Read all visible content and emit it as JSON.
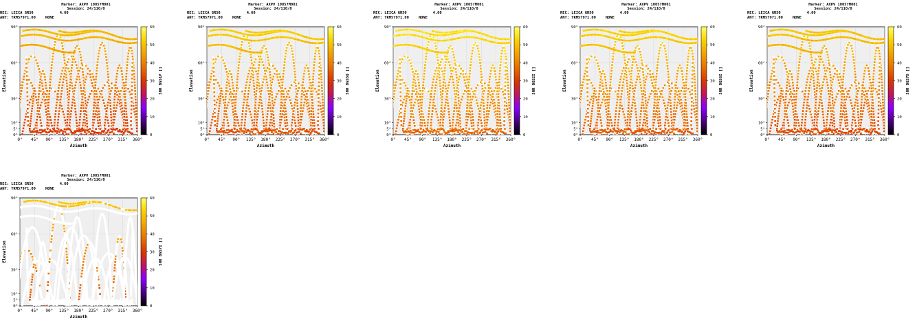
{
  "figure": {
    "colors": {
      "background": "#efefef",
      "sky_gap": "#ffffff",
      "grid": "#d0d0d0",
      "colormap": [
        "#000000",
        "#4b0082",
        "#8b00ff",
        "#c0155c",
        "#d83800",
        "#e87000",
        "#f2a100",
        "#f8d200",
        "#ffff66"
      ]
    },
    "panels": [
      {
        "header": {
          "marker": "Marker: AXPV 10057M001",
          "session": "Session: 24/110/0",
          "rec_label": "REC: LEICA GR50",
          "rec_version": "4.60",
          "ant_label": "ANT: TRM57971.00",
          "ant_radome": "NONE"
        },
        "chart_data": {
          "type": "scatter",
          "xlabel": "Azimuth",
          "ylabel": "Elevation",
          "x_ticks": [
            "0°",
            "45°",
            "90°",
            "135°",
            "180°",
            "225°",
            "270°",
            "315°",
            "360°"
          ],
          "y_ticks": [
            "0°",
            "5°",
            "10°",
            "30°",
            "60°",
            "90°"
          ],
          "xlim": [
            0,
            360
          ],
          "ylim": [
            0,
            90
          ],
          "elevation_cutoff": 0,
          "colorbar": {
            "label": "SNR BGS1P []",
            "ticks": [
              "0",
              "10",
              "20",
              "30",
              "40",
              "50",
              "60"
            ],
            "range": [
              0,
              60
            ]
          },
          "typical_snr": 44
        }
      },
      {
        "header": {
          "marker": "Marker: AXPV 10057M001",
          "session": "Session: 24/110/0",
          "rec_label": "REC: LEICA GR50",
          "rec_version": "4.60",
          "ant_label": "ANT: TRM57971.00",
          "ant_radome": "NONE"
        },
        "chart_data": {
          "type": "scatter",
          "xlabel": "Azimuth",
          "ylabel": "Elevation",
          "x_ticks": [
            "0°",
            "45°",
            "90°",
            "135°",
            "180°",
            "225°",
            "270°",
            "315°",
            "360°"
          ],
          "y_ticks": [
            "0°",
            "5°",
            "10°",
            "30°",
            "60°",
            "90°"
          ],
          "xlim": [
            0,
            360
          ],
          "ylim": [
            0,
            90
          ],
          "elevation_cutoff": 0,
          "colorbar": {
            "label": "SNR BGS5Q []",
            "ticks": [
              "0",
              "10",
              "20",
              "30",
              "40",
              "50",
              "60"
            ],
            "range": [
              0,
              60
            ]
          },
          "typical_snr": 47
        }
      },
      {
        "header": {
          "marker": "Marker: AXPV 10057M001",
          "session": "Session: 24/110/0",
          "rec_label": "REC: LEICA GR50",
          "rec_version": "4.60",
          "ant_label": "ANT: TRM57971.00",
          "ant_radome": "NONE"
        },
        "chart_data": {
          "type": "scatter",
          "xlabel": "Azimuth",
          "ylabel": "Elevation",
          "x_ticks": [
            "0°",
            "45°",
            "90°",
            "135°",
            "180°",
            "225°",
            "270°",
            "315°",
            "360°"
          ],
          "y_ticks": [
            "0°",
            "5°",
            "10°",
            "30°",
            "60°",
            "90°"
          ],
          "xlim": [
            0,
            360
          ],
          "ylim": [
            0,
            90
          ],
          "elevation_cutoff": 0,
          "colorbar": {
            "label": "SNR BGS2I []",
            "ticks": [
              "0",
              "10",
              "20",
              "30",
              "40",
              "50",
              "60"
            ],
            "range": [
              0,
              60
            ]
          },
          "typical_snr": 50
        }
      },
      {
        "header": {
          "marker": "Marker: AXPV 10057M001",
          "session": "Session: 24/110/0",
          "rec_label": "REC: LEICA GR50",
          "rec_version": "4.60",
          "ant_label": "ANT: TRM57971.00",
          "ant_radome": "NONE"
        },
        "chart_data": {
          "type": "scatter",
          "xlabel": "Azimuth",
          "ylabel": "Elevation",
          "x_ticks": [
            "0°",
            "45°",
            "90°",
            "135°",
            "180°",
            "225°",
            "270°",
            "315°",
            "360°"
          ],
          "y_ticks": [
            "0°",
            "5°",
            "10°",
            "30°",
            "60°",
            "90°"
          ],
          "xlim": [
            0,
            360
          ],
          "ylim": [
            0,
            90
          ],
          "elevation_cutoff": 0,
          "colorbar": {
            "label": "SNR BGS6I []",
            "ticks": [
              "0",
              "10",
              "20",
              "30",
              "40",
              "50",
              "60"
            ],
            "range": [
              0,
              60
            ]
          },
          "typical_snr": 48
        }
      },
      {
        "header": {
          "marker": "Marker: AXPV 10057M001",
          "session": "Session: 24/110/0",
          "rec_label": "REC: LEICA GR50",
          "rec_version": "4.60",
          "ant_label": "ANT: TRM57971.00",
          "ant_radome": "NONE"
        },
        "chart_data": {
          "type": "scatter",
          "xlabel": "Azimuth",
          "ylabel": "Elevation",
          "x_ticks": [
            "0°",
            "45°",
            "90°",
            "135°",
            "180°",
            "225°",
            "270°",
            "315°",
            "360°"
          ],
          "y_ticks": [
            "0°",
            "5°",
            "10°",
            "30°",
            "60°",
            "90°"
          ],
          "xlim": [
            0,
            360
          ],
          "ylim": [
            0,
            90
          ],
          "elevation_cutoff": 0,
          "colorbar": {
            "label": "SNR BGS7D []",
            "ticks": [
              "0",
              "10",
              "20",
              "30",
              "40",
              "50",
              "60"
            ],
            "range": [
              0,
              60
            ]
          },
          "typical_snr": 46
        }
      },
      {
        "header": {
          "marker": "Marker: AXPV 10057M001",
          "session": "Session: 24/110/0",
          "rec_label": "REC: LEICA GR50",
          "rec_version": "4.60",
          "ant_label": "ANT: TRM57971.00",
          "ant_radome": "NONE"
        },
        "chart_data": {
          "type": "scatter",
          "xlabel": "Azimuth",
          "ylabel": "Elevation",
          "x_ticks": [
            "0°",
            "45°",
            "90°",
            "135°",
            "180°",
            "225°",
            "270°",
            "315°",
            "360°"
          ],
          "y_ticks": [
            "0°",
            "5°",
            "10°",
            "30°",
            "60°",
            "90°"
          ],
          "xlim": [
            0,
            360
          ],
          "ylim": [
            0,
            90
          ],
          "elevation_cutoff": 0,
          "colorbar": {
            "label": "SNR BGS7I []",
            "ticks": [
              "0",
              "10",
              "20",
              "30",
              "40",
              "50",
              "60"
            ],
            "range": [
              0,
              60
            ]
          },
          "typical_snr": 46,
          "sparse": true
        }
      }
    ]
  }
}
